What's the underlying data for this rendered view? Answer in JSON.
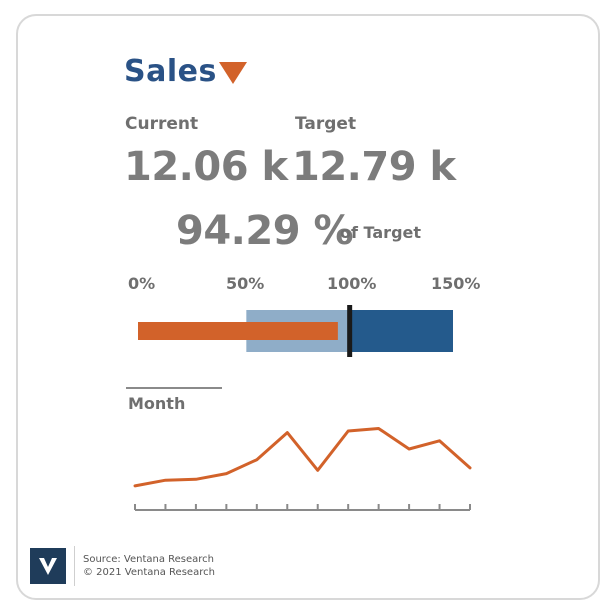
{
  "title": "Sales",
  "current_label": "Current",
  "target_label": "Target",
  "current_value": "12.06 k",
  "target_value": "12.79 k",
  "pct_value": "94.29 %",
  "pct_suffix": "of Target",
  "month_label": "Month",
  "footer": {
    "source": "Source: Ventana Research",
    "copyright": "© 2021 Ventana Research"
  },
  "colors": {
    "accent": "#d2622a",
    "brand": "#2a5286",
    "band_light": "#8fadc8",
    "band_dark": "#245a8c",
    "text": "#7c7c7c"
  },
  "icons": {
    "title_indicator": "down-triangle-icon",
    "logo": "ventana-logo-icon"
  },
  "chart_data": [
    {
      "type": "bar",
      "subtype": "bullet",
      "ticks": [
        "0%",
        "50%",
        "100%",
        "150%"
      ],
      "xlim": [
        0,
        150
      ],
      "value": 94.29,
      "target": 100,
      "bands": [
        {
          "from": 50,
          "to": 100,
          "shade": "light"
        },
        {
          "from": 100,
          "to": 150,
          "shade": "dark"
        }
      ]
    },
    {
      "type": "line",
      "xlabel": "Month",
      "x": [
        1,
        2,
        3,
        4,
        5,
        6,
        7,
        8,
        9,
        10,
        11,
        12
      ],
      "values": [
        0.05,
        0.12,
        0.13,
        0.2,
        0.37,
        0.7,
        0.24,
        0.72,
        0.75,
        0.5,
        0.6,
        0.27
      ],
      "ylim": [
        0,
        1
      ]
    }
  ]
}
